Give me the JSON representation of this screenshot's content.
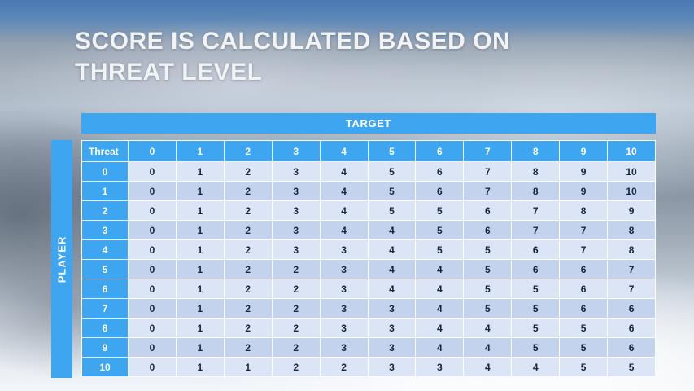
{
  "slide": {
    "title_line1": "SCORE IS CALCULATED BASED ON",
    "title_line2": "THREAT LEVEL"
  },
  "table": {
    "target_label": "TARGET",
    "player_label": "PLAYER",
    "corner_label": "Threat",
    "col_headers": [
      "0",
      "1",
      "2",
      "3",
      "4",
      "5",
      "6",
      "7",
      "8",
      "9",
      "10"
    ],
    "rows": [
      {
        "label": "0",
        "values": [
          0,
          1,
          2,
          3,
          4,
          5,
          6,
          7,
          8,
          9,
          10
        ]
      },
      {
        "label": "1",
        "values": [
          0,
          1,
          2,
          3,
          4,
          5,
          6,
          7,
          8,
          9,
          10
        ]
      },
      {
        "label": "2",
        "values": [
          0,
          1,
          2,
          3,
          4,
          5,
          5,
          6,
          7,
          8,
          9
        ]
      },
      {
        "label": "3",
        "values": [
          0,
          1,
          2,
          3,
          4,
          4,
          5,
          6,
          7,
          7,
          8
        ]
      },
      {
        "label": "4",
        "values": [
          0,
          1,
          2,
          3,
          3,
          4,
          5,
          5,
          6,
          7,
          8
        ]
      },
      {
        "label": "5",
        "values": [
          0,
          1,
          2,
          2,
          3,
          4,
          4,
          5,
          6,
          6,
          7
        ]
      },
      {
        "label": "6",
        "values": [
          0,
          1,
          2,
          2,
          3,
          4,
          4,
          5,
          5,
          6,
          7
        ]
      },
      {
        "label": "7",
        "values": [
          0,
          1,
          2,
          2,
          3,
          3,
          4,
          5,
          5,
          6,
          6
        ]
      },
      {
        "label": "8",
        "values": [
          0,
          1,
          2,
          2,
          3,
          3,
          4,
          4,
          5,
          5,
          6
        ]
      },
      {
        "label": "9",
        "values": [
          0,
          1,
          2,
          2,
          3,
          3,
          4,
          4,
          5,
          5,
          6
        ]
      },
      {
        "label": "10",
        "values": [
          0,
          1,
          1,
          2,
          2,
          3,
          3,
          4,
          4,
          5,
          5
        ]
      }
    ]
  },
  "chart_data": {
    "type": "table",
    "title": "Score is calculated based on threat level",
    "xlabel": "TARGET",
    "ylabel": "PLAYER",
    "categories": [
      "0",
      "1",
      "2",
      "3",
      "4",
      "5",
      "6",
      "7",
      "8",
      "9",
      "10"
    ],
    "series": [
      {
        "name": "Player threat 0",
        "values": [
          0,
          1,
          2,
          3,
          4,
          5,
          6,
          7,
          8,
          9,
          10
        ]
      },
      {
        "name": "Player threat 1",
        "values": [
          0,
          1,
          2,
          3,
          4,
          5,
          6,
          7,
          8,
          9,
          10
        ]
      },
      {
        "name": "Player threat 2",
        "values": [
          0,
          1,
          2,
          3,
          4,
          5,
          5,
          6,
          7,
          8,
          9
        ]
      },
      {
        "name": "Player threat 3",
        "values": [
          0,
          1,
          2,
          3,
          4,
          4,
          5,
          6,
          7,
          7,
          8
        ]
      },
      {
        "name": "Player threat 4",
        "values": [
          0,
          1,
          2,
          3,
          3,
          4,
          5,
          5,
          6,
          7,
          8
        ]
      },
      {
        "name": "Player threat 5",
        "values": [
          0,
          1,
          2,
          2,
          3,
          4,
          4,
          5,
          6,
          6,
          7
        ]
      },
      {
        "name": "Player threat 6",
        "values": [
          0,
          1,
          2,
          2,
          3,
          4,
          4,
          5,
          5,
          6,
          7
        ]
      },
      {
        "name": "Player threat 7",
        "values": [
          0,
          1,
          2,
          2,
          3,
          3,
          4,
          5,
          5,
          6,
          6
        ]
      },
      {
        "name": "Player threat 8",
        "values": [
          0,
          1,
          2,
          2,
          3,
          3,
          4,
          4,
          5,
          5,
          6
        ]
      },
      {
        "name": "Player threat 9",
        "values": [
          0,
          1,
          2,
          2,
          3,
          3,
          4,
          4,
          5,
          5,
          6
        ]
      },
      {
        "name": "Player threat 10",
        "values": [
          0,
          1,
          1,
          2,
          2,
          3,
          3,
          4,
          4,
          5,
          5
        ]
      }
    ]
  },
  "colors": {
    "accent_blue": "#3ea6f0",
    "row_light": "#dbe5f6",
    "row_dark": "#c3d3ee",
    "cell_text": "#16243d",
    "title_color": "#f2f3f5"
  }
}
